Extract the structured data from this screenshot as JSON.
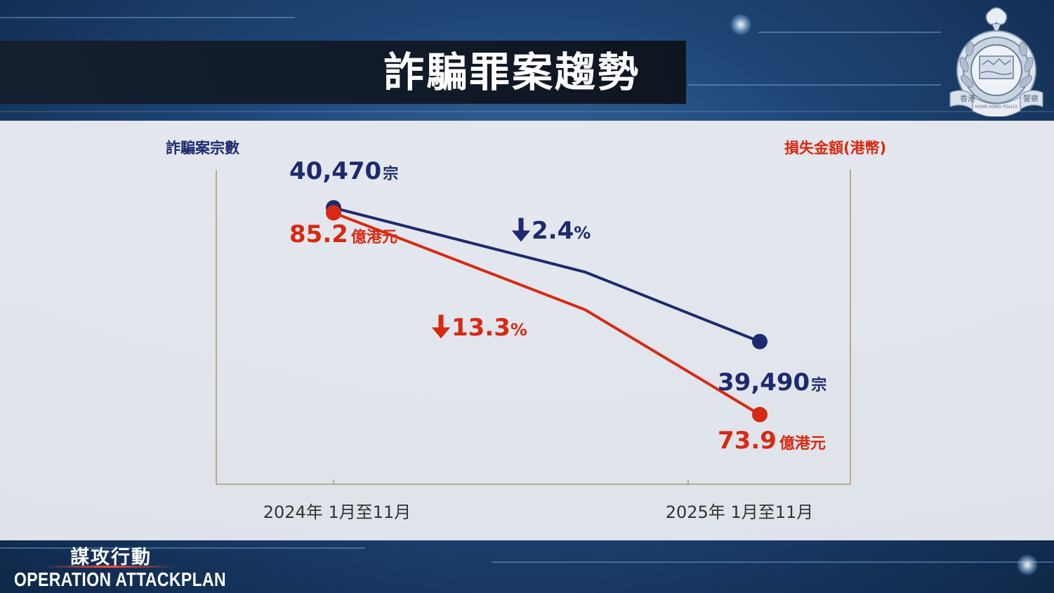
{
  "header": {
    "title": "詐騙罪案趨勢"
  },
  "badge": {
    "icon": "hong-kong-police-badge-icon",
    "text_left": "香港",
    "text_mid": "HONG KONG POLICE",
    "text_right": "警察"
  },
  "footer": {
    "operation_cn": "謀攻行動",
    "operation_en": "OPERATION ATTACKPLAN"
  },
  "colors": {
    "cases": "#1e2a6e",
    "loss": "#d72a12",
    "axis": "#b9a993"
  },
  "chart_data": {
    "type": "line",
    "left_axis_label": "詐騙案宗數",
    "right_axis_label": "損失金額(港幣)",
    "categories": [
      "2024年 1月至11月",
      "2025年 1月至11月"
    ],
    "series": [
      {
        "id": "cases",
        "values": [
          40470,
          39490
        ],
        "value_labels": [
          "40,470",
          "39,490"
        ],
        "unit": "宗",
        "change_label": "2.4",
        "change_unit": "%",
        "axis": "left"
      },
      {
        "id": "loss",
        "values": [
          85.2,
          73.9
        ],
        "value_labels": [
          "85.2",
          "73.9"
        ],
        "unit": "億港元",
        "change_label": "13.3",
        "change_unit": "%",
        "axis": "right"
      }
    ]
  }
}
